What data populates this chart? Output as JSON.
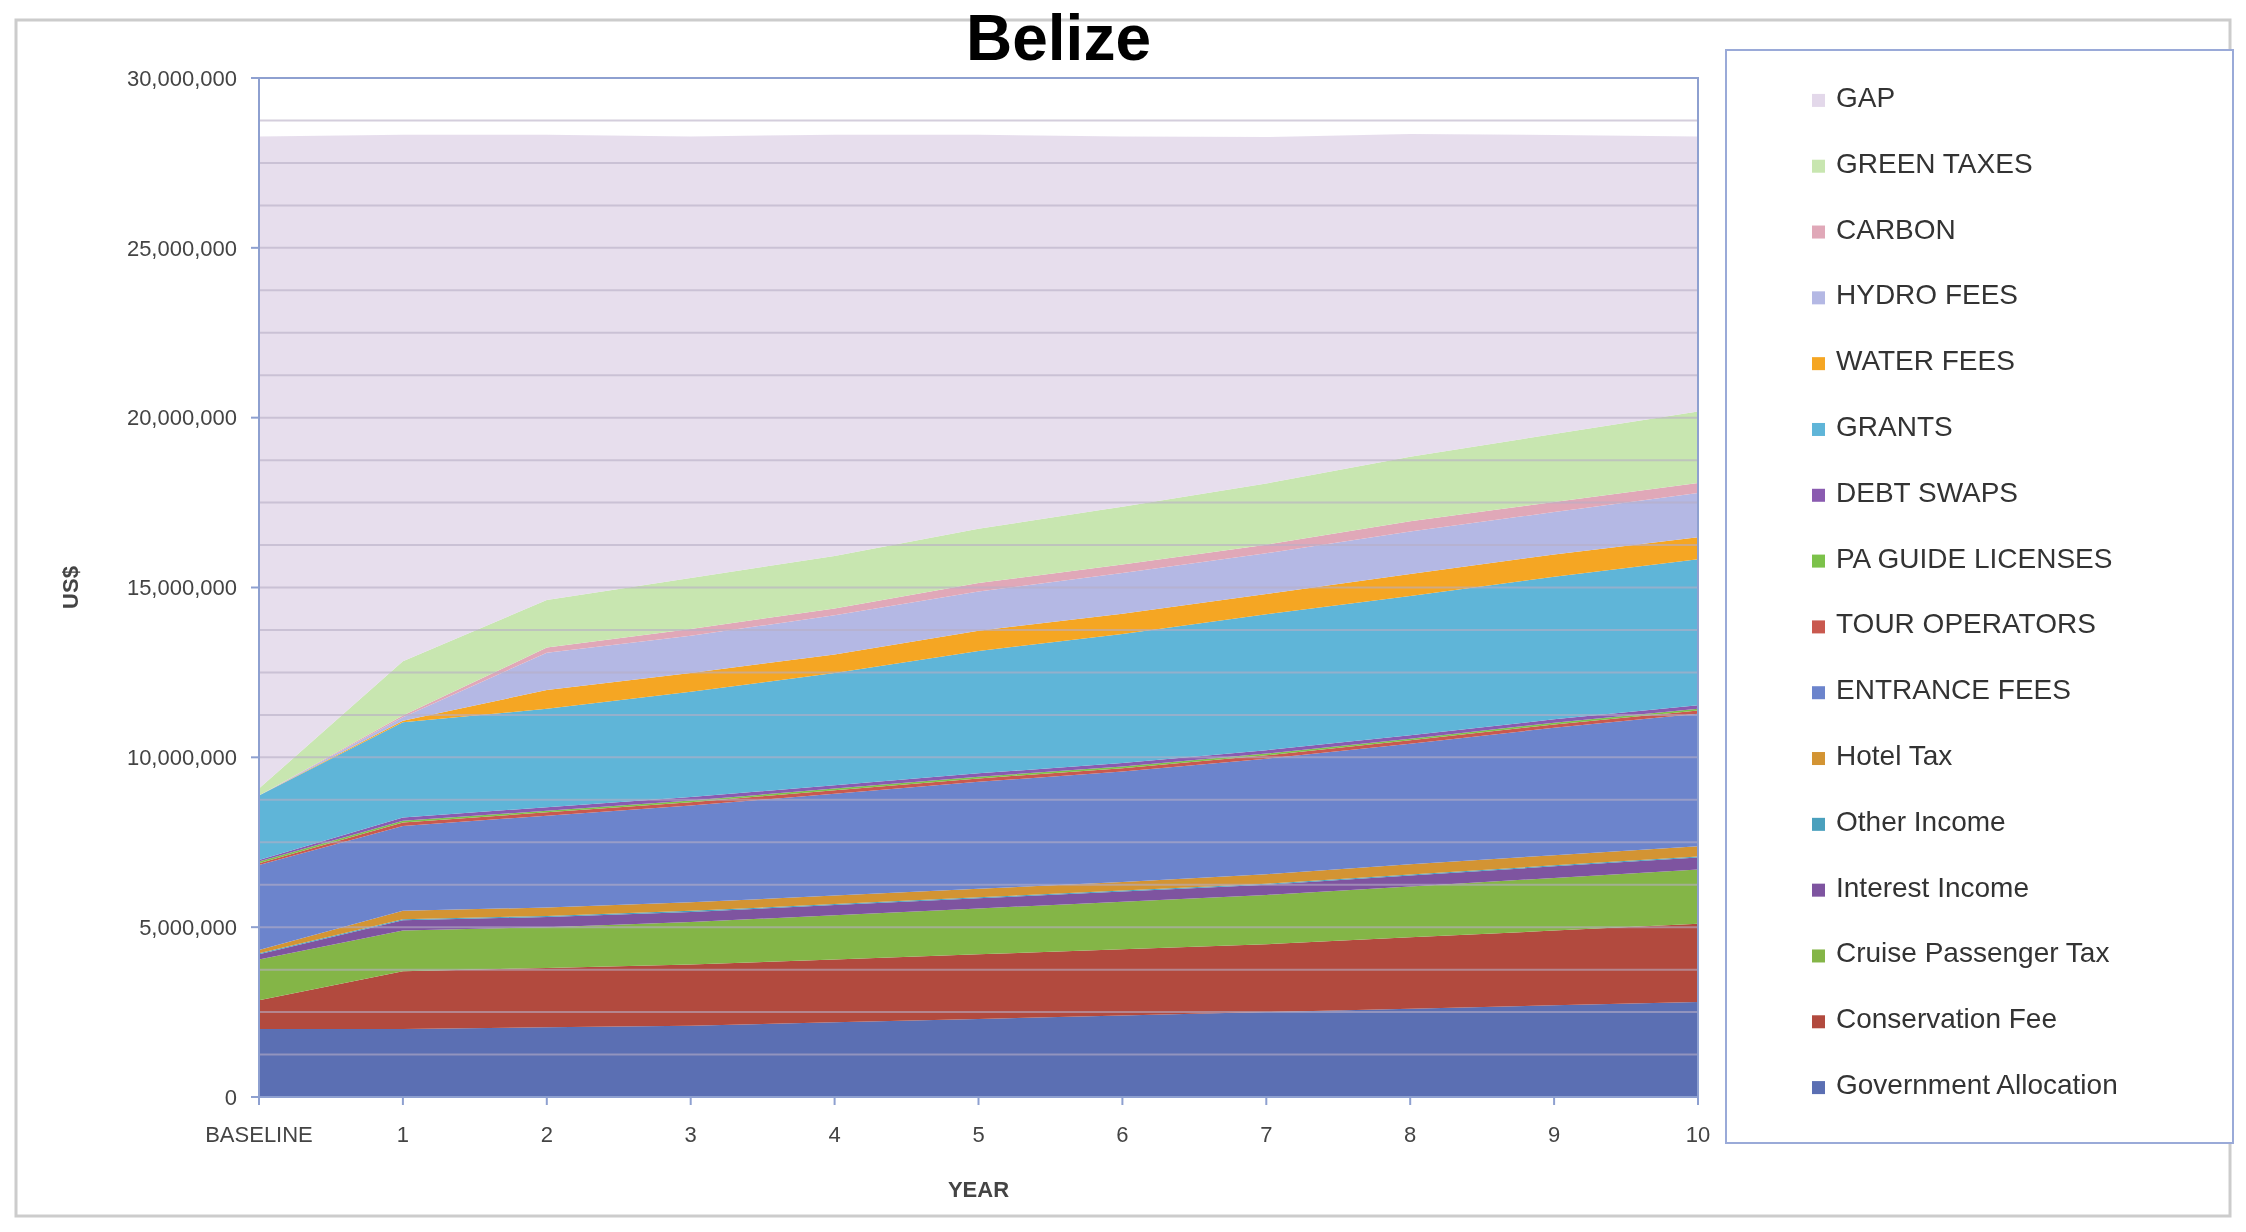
{
  "chart_data": {
    "type": "area",
    "stacked": true,
    "title": "Belize",
    "xlabel": "YEAR",
    "ylabel": "US$",
    "categories": [
      "BASELINE",
      "1",
      "2",
      "3",
      "4",
      "5",
      "6",
      "7",
      "8",
      "9",
      "10"
    ],
    "ylim": [
      0,
      30000000
    ],
    "yticks": [
      {
        "value": 0,
        "label": "0"
      },
      {
        "value": 1250000,
        "label": null
      },
      {
        "value": 2500000,
        "label": null
      },
      {
        "value": 3750000,
        "label": null
      },
      {
        "value": 5000000,
        "label": "5,000,000"
      },
      {
        "value": 6250000,
        "label": null
      },
      {
        "value": 7500000,
        "label": null
      },
      {
        "value": 8750000,
        "label": null
      },
      {
        "value": 10000000,
        "label": "10,000,000"
      },
      {
        "value": 11250000,
        "label": null
      },
      {
        "value": 12500000,
        "label": null
      },
      {
        "value": 13750000,
        "label": null
      },
      {
        "value": 15000000,
        "label": "15,000,000"
      },
      {
        "value": 16250000,
        "label": null
      },
      {
        "value": 17500000,
        "label": null
      },
      {
        "value": 18750000,
        "label": null
      },
      {
        "value": 20000000,
        "label": "20,000,000"
      },
      {
        "value": 21250000,
        "label": null
      },
      {
        "value": 22500000,
        "label": null
      },
      {
        "value": 23750000,
        "label": null
      },
      {
        "value": 25000000,
        "label": "25,000,000"
      },
      {
        "value": 26250000,
        "label": null
      },
      {
        "value": 27500000,
        "label": null
      },
      {
        "value": 28750000,
        "label": null
      },
      {
        "value": 30000000,
        "label": "30,000,000"
      }
    ],
    "grid": "y",
    "legend": "right",
    "series": [
      {
        "name": "Government Allocation",
        "color": "#5b6fb3",
        "values": [
          2000000,
          2000000,
          2050000,
          2100000,
          2200000,
          2300000,
          2400000,
          2500000,
          2600000,
          2700000,
          2800000
        ]
      },
      {
        "name": "Conservation Fee",
        "color": "#b24a3e",
        "values": [
          850000,
          1700000,
          1750000,
          1800000,
          1850000,
          1900000,
          1950000,
          2000000,
          2100000,
          2200000,
          2300000
        ]
      },
      {
        "name": "Cruise Passenger Tax",
        "color": "#84b547",
        "values": [
          1200000,
          1200000,
          1200000,
          1250000,
          1300000,
          1350000,
          1400000,
          1450000,
          1500000,
          1550000,
          1600000
        ]
      },
      {
        "name": "Interest Income",
        "color": "#7e54a0",
        "values": [
          150000,
          300000,
          300000,
          300000,
          300000,
          300000,
          300000,
          300000,
          320000,
          340000,
          350000
        ]
      },
      {
        "name": "Other Income",
        "color": "#4aa0bd",
        "values": [
          30000,
          30000,
          30000,
          30000,
          30000,
          30000,
          30000,
          30000,
          30000,
          30000,
          30000
        ]
      },
      {
        "name": "Hotel Tax",
        "color": "#d39433",
        "values": [
          100000,
          250000,
          250000,
          250000,
          250000,
          250000,
          250000,
          280000,
          300000,
          300000,
          300000
        ]
      },
      {
        "name": "ENTRANCE FEES",
        "color": "#6c84cc",
        "values": [
          2500000,
          2500000,
          2700000,
          2850000,
          3000000,
          3150000,
          3250000,
          3400000,
          3550000,
          3750000,
          3900000
        ]
      },
      {
        "name": "TOUR OPERATORS",
        "color": "#c9594f",
        "values": [
          50000,
          100000,
          100000,
          100000,
          100000,
          100000,
          100000,
          100000,
          100000,
          100000,
          100000
        ]
      },
      {
        "name": "PA GUIDE LICENSES",
        "color": "#7cc24a",
        "values": [
          50000,
          50000,
          50000,
          50000,
          50000,
          50000,
          50000,
          50000,
          50000,
          50000,
          50000
        ]
      },
      {
        "name": "DEBT SWAPS",
        "color": "#8a5bb0",
        "values": [
          50000,
          100000,
          100000,
          100000,
          100000,
          100000,
          100000,
          100000,
          100000,
          100000,
          100000
        ]
      },
      {
        "name": "GRANTS",
        "color": "#5fb5d8",
        "values": [
          1900000,
          2800000,
          2900000,
          3100000,
          3300000,
          3600000,
          3800000,
          4000000,
          4100000,
          4200000,
          4300000
        ]
      },
      {
        "name": "WATER FEES",
        "color": "#f5a623",
        "values": [
          0,
          50000,
          550000,
          550000,
          550000,
          600000,
          600000,
          600000,
          650000,
          650000,
          650000
        ]
      },
      {
        "name": "HYDRO FEES",
        "color": "#b4b8e4",
        "values": [
          0,
          100000,
          1100000,
          1100000,
          1150000,
          1150000,
          1200000,
          1200000,
          1250000,
          1250000,
          1300000
        ]
      },
      {
        "name": "CARBON",
        "color": "#e0a8b8",
        "values": [
          0,
          50000,
          150000,
          200000,
          200000,
          250000,
          250000,
          250000,
          300000,
          300000,
          300000
        ]
      },
      {
        "name": "GREEN TAXES",
        "color": "#c8e6b0",
        "values": [
          200000,
          1600000,
          1400000,
          1500000,
          1550000,
          1600000,
          1700000,
          1800000,
          1900000,
          2000000,
          2100000
        ]
      },
      {
        "name": "GAP",
        "color": "#e3d8ea",
        "values": [
          19200000,
          15500000,
          13700000,
          13000000,
          12400000,
          11600000,
          10900000,
          10200000,
          9500000,
          8800000,
          8100000
        ]
      }
    ]
  }
}
